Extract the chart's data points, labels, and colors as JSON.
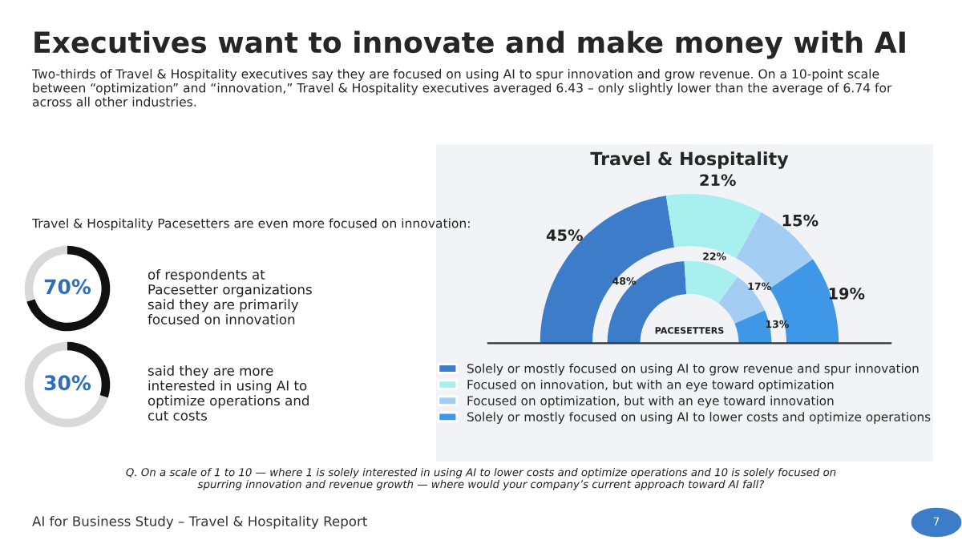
{
  "chart_data": [
    {
      "type": "other",
      "title": "Executives want to innovate and make money with AI",
      "subtitle": "Two-thirds of Travel & Hospitality executives say they are focused on using AI to spur innovation and grow revenue. On a 10-point scale between “optimization” and “innovation,” Travel & Hospitality executives averaged 6.43 – only slightly lower than the average of 6.74 for across all other industries.",
      "annotations": [
        "Travel & Hospitality Pacesetters are even more focused on innovation:",
        "AI for Business Study – Travel & Hospitality Report",
        "7"
      ]
    },
    {
      "type": "donut",
      "categories": [
        null,
        null
      ],
      "values": [
        70,
        30
      ],
      "colors": [
        "#111111",
        "#d9d9d9"
      ],
      "value_labels": [
        "70%",
        null
      ],
      "annotations": [
        "of respondents at Pacesetter organizations said they are primarily focused on innovation"
      ]
    },
    {
      "type": "donut",
      "categories": [
        null,
        null
      ],
      "values": [
        30,
        70
      ],
      "colors": [
        "#111111",
        "#d9d9d9"
      ],
      "value_labels": [
        "30%",
        null
      ],
      "annotations": [
        "said they are more interested in using AI to optimize operations and cut costs"
      ]
    },
    {
      "type": "donut",
      "title": "Travel & Hospitality",
      "categories": [
        "Solely or mostly focused on using AI to grow revenue and spur innovation",
        "Focused on innovation, but with an eye toward optimization",
        "Focused on optimization, but with an eye toward innovation",
        "Solely or mostly focused on using AI to lower costs and optimize operations"
      ],
      "colors": [
        "#3d7cc9",
        "#a8f0ef",
        "#a3cdf2",
        "#3f97e8"
      ],
      "series": [
        {
          "values": [
            45,
            21,
            15,
            19
          ],
          "value_labels": [
            "45%",
            "21%",
            "15%",
            "19%"
          ]
        },
        {
          "name": "PACESETTERS",
          "values": [
            48,
            22,
            17,
            13
          ],
          "value_labels": [
            "48%",
            "22%",
            "17%",
            "13%"
          ]
        }
      ],
      "legend": "bottom",
      "annotations": [
        "Q. On a scale of 1 to 10 — where 1 is solely interested in using AI to lower costs and optimize operations and 10 is solely focused on spurring innovation and revenue growth — where would your company’s current approach toward AI fall?"
      ]
    }
  ]
}
